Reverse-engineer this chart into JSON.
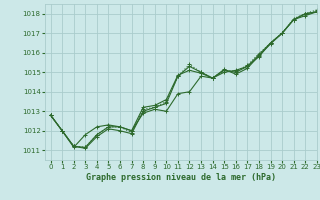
{
  "title": "Graphe pression niveau de la mer (hPa)",
  "bg_color": "#cce8e8",
  "grid_color": "#aacccc",
  "line_color": "#2d6a2d",
  "xlim": [
    -0.5,
    23
  ],
  "ylim": [
    1010.5,
    1018.5
  ],
  "yticks": [
    1011,
    1012,
    1013,
    1014,
    1015,
    1016,
    1017,
    1018
  ],
  "xticks": [
    0,
    1,
    2,
    3,
    4,
    5,
    6,
    7,
    8,
    9,
    10,
    11,
    12,
    13,
    14,
    15,
    16,
    17,
    18,
    19,
    20,
    21,
    22,
    23
  ],
  "series": [
    {
      "x": [
        0,
        1,
        2,
        3,
        4,
        5,
        6,
        7,
        8,
        9,
        10,
        11,
        12,
        13,
        14,
        15,
        16,
        17,
        18,
        19,
        20,
        21,
        22,
        23
      ],
      "y": [
        1012.8,
        1012.0,
        1011.2,
        1011.15,
        1011.8,
        1012.2,
        1012.2,
        1012.0,
        1012.9,
        1013.1,
        1013.0,
        1013.9,
        1014.0,
        1014.8,
        1014.7,
        1015.0,
        1015.1,
        1015.3,
        1015.8,
        1016.5,
        1017.0,
        1017.7,
        1017.9,
        1018.1
      ],
      "linestyle": "-",
      "marker": "+"
    },
    {
      "x": [
        0,
        1,
        2,
        3,
        4,
        5,
        6,
        7,
        8,
        9,
        10,
        11,
        12,
        13,
        14,
        15,
        16,
        17,
        18,
        19,
        20,
        21,
        22,
        23
      ],
      "y": [
        1012.8,
        1012.0,
        1011.2,
        1011.15,
        1011.8,
        1012.2,
        1012.2,
        1011.9,
        1013.1,
        1013.2,
        1013.5,
        1014.8,
        1015.4,
        1015.0,
        1014.7,
        1015.1,
        1015.05,
        1015.35,
        1015.95,
        1016.5,
        1017.0,
        1017.75,
        1018.0,
        1018.2
      ],
      "linestyle": "dotted",
      "marker": "+"
    },
    {
      "x": [
        0,
        1,
        2,
        3,
        4,
        5,
        6,
        7,
        8,
        9,
        10,
        11,
        12,
        13,
        14,
        15,
        16,
        17,
        18,
        19,
        20,
        21,
        22,
        23
      ],
      "y": [
        1012.8,
        1012.0,
        1011.15,
        1011.8,
        1012.2,
        1012.3,
        1012.2,
        1012.0,
        1013.2,
        1013.3,
        1013.6,
        1014.85,
        1015.1,
        1014.95,
        1014.7,
        1015.15,
        1014.9,
        1015.2,
        1015.85,
        1016.45,
        1017.0,
        1017.7,
        1018.0,
        1018.1
      ],
      "linestyle": "-",
      "marker": "+"
    },
    {
      "x": [
        0,
        1,
        2,
        3,
        4,
        5,
        6,
        7,
        8,
        9,
        10,
        11,
        12,
        13,
        14,
        15,
        16,
        17,
        18,
        19,
        20,
        21,
        22,
        23
      ],
      "y": [
        1012.8,
        1012.0,
        1011.2,
        1011.1,
        1011.7,
        1012.1,
        1012.0,
        1011.85,
        1013.0,
        1013.2,
        1013.4,
        1014.8,
        1015.3,
        1015.0,
        1014.7,
        1015.1,
        1015.0,
        1015.3,
        1015.9,
        1016.5,
        1017.0,
        1017.7,
        1018.0,
        1018.1
      ],
      "linestyle": "-",
      "marker": "+"
    }
  ]
}
